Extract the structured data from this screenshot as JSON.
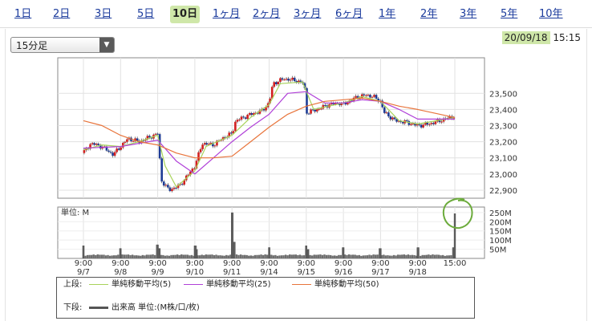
{
  "tabs": [
    {
      "label": "1日",
      "active": false
    },
    {
      "label": "2日",
      "active": false
    },
    {
      "label": "3日",
      "active": false
    },
    {
      "label": "5日",
      "active": false
    },
    {
      "label": "10日",
      "active": true
    },
    {
      "label": "1ヶ月",
      "active": false
    },
    {
      "label": "2ヶ月",
      "active": false
    },
    {
      "label": "3ヶ月",
      "active": false
    },
    {
      "label": "6ヶ月",
      "active": false
    },
    {
      "label": "1年",
      "active": false
    },
    {
      "label": "2年",
      "active": false
    },
    {
      "label": "3年",
      "active": false
    },
    {
      "label": "5年",
      "active": false
    },
    {
      "label": "10年",
      "active": false
    }
  ],
  "interval_select": {
    "value": "15分足"
  },
  "timestamp": {
    "date": "20/09/18",
    "time": "15:15"
  },
  "legend": {
    "upper_label": "上段:",
    "lower_label": "下段:",
    "items": [
      {
        "name": "単純移動平均(5)",
        "color": "#a8d35a"
      },
      {
        "name": "単純移動平均(25)",
        "color": "#b040d8"
      },
      {
        "name": "単純移動平均(50)",
        "color": "#e8743b"
      }
    ],
    "volume_item": "出来高 単位:(M株/口/枚)"
  },
  "chart_data": [
    {
      "type": "candlestick",
      "x_labels": [
        {
          "time": "9:00",
          "date": "9/7"
        },
        {
          "time": "9:00",
          "date": "9/8"
        },
        {
          "time": "9:00",
          "date": "9/9"
        },
        {
          "time": "9:00",
          "date": "9/10"
        },
        {
          "time": "9:00",
          "date": "9/11"
        },
        {
          "time": "9:00",
          "date": "9/14"
        },
        {
          "time": "9:00",
          "date": "9/15"
        },
        {
          "time": "9:00",
          "date": "9/16"
        },
        {
          "time": "9:00",
          "date": "9/17"
        },
        {
          "time": "9:00",
          "date": "9/18"
        },
        {
          "time": "15:00",
          "date": ""
        }
      ],
      "ylim": [
        22850,
        23720
      ],
      "y_ticks": [
        22900,
        23000,
        23100,
        23200,
        23300,
        23400,
        23500
      ],
      "y_tick_labels": [
        "22,900",
        "23,000",
        "23,100",
        "23,200",
        "23,300",
        "23,400",
        "23,500"
      ],
      "grid": true,
      "close_path": [
        {
          "x": 0.0,
          "y": 23130
        },
        {
          "x": 0.2,
          "y": 23190
        },
        {
          "x": 0.5,
          "y": 23170
        },
        {
          "x": 0.8,
          "y": 23120
        },
        {
          "x": 1.0,
          "y": 23170
        },
        {
          "x": 1.2,
          "y": 23220
        },
        {
          "x": 1.5,
          "y": 23200
        },
        {
          "x": 1.8,
          "y": 23230
        },
        {
          "x": 2.0,
          "y": 23250
        },
        {
          "x": 2.1,
          "y": 22960
        },
        {
          "x": 2.3,
          "y": 22900
        },
        {
          "x": 2.6,
          "y": 22930
        },
        {
          "x": 2.8,
          "y": 22990
        },
        {
          "x": 3.0,
          "y": 23050
        },
        {
          "x": 3.2,
          "y": 23190
        },
        {
          "x": 3.5,
          "y": 23180
        },
        {
          "x": 3.8,
          "y": 23230
        },
        {
          "x": 4.0,
          "y": 23250
        },
        {
          "x": 4.1,
          "y": 23330
        },
        {
          "x": 4.5,
          "y": 23370
        },
        {
          "x": 4.8,
          "y": 23390
        },
        {
          "x": 5.0,
          "y": 23440
        },
        {
          "x": 5.1,
          "y": 23560
        },
        {
          "x": 5.4,
          "y": 23590
        },
        {
          "x": 5.7,
          "y": 23580
        },
        {
          "x": 5.95,
          "y": 23560
        },
        {
          "x": 6.0,
          "y": 23380
        },
        {
          "x": 6.3,
          "y": 23400
        },
        {
          "x": 6.6,
          "y": 23430
        },
        {
          "x": 6.9,
          "y": 23440
        },
        {
          "x": 7.0,
          "y": 23430
        },
        {
          "x": 7.3,
          "y": 23470
        },
        {
          "x": 7.6,
          "y": 23490
        },
        {
          "x": 7.8,
          "y": 23480
        },
        {
          "x": 8.0,
          "y": 23450
        },
        {
          "x": 8.1,
          "y": 23380
        },
        {
          "x": 8.4,
          "y": 23330
        },
        {
          "x": 8.7,
          "y": 23320
        },
        {
          "x": 9.0,
          "y": 23300
        },
        {
          "x": 9.3,
          "y": 23310
        },
        {
          "x": 9.6,
          "y": 23330
        },
        {
          "x": 10.0,
          "y": 23360
        }
      ],
      "series": [
        {
          "name": "単純移動平均(5)",
          "color": "#a8d35a",
          "points": [
            {
              "x": 0.0,
              "y": 23150
            },
            {
              "x": 0.5,
              "y": 23180
            },
            {
              "x": 1.0,
              "y": 23170
            },
            {
              "x": 1.5,
              "y": 23200
            },
            {
              "x": 2.0,
              "y": 23240
            },
            {
              "x": 2.2,
              "y": 23050
            },
            {
              "x": 2.5,
              "y": 22920
            },
            {
              "x": 3.0,
              "y": 23020
            },
            {
              "x": 3.3,
              "y": 23170
            },
            {
              "x": 4.0,
              "y": 23240
            },
            {
              "x": 4.5,
              "y": 23350
            },
            {
              "x": 5.0,
              "y": 23430
            },
            {
              "x": 5.3,
              "y": 23560
            },
            {
              "x": 5.9,
              "y": 23570
            },
            {
              "x": 6.2,
              "y": 23400
            },
            {
              "x": 7.0,
              "y": 23440
            },
            {
              "x": 7.5,
              "y": 23480
            },
            {
              "x": 8.0,
              "y": 23450
            },
            {
              "x": 8.5,
              "y": 23330
            },
            {
              "x": 9.0,
              "y": 23310
            },
            {
              "x": 10.0,
              "y": 23350
            }
          ]
        },
        {
          "name": "単純移動平均(25)",
          "color": "#b040d8",
          "points": [
            {
              "x": 0.0,
              "y": 23160
            },
            {
              "x": 1.0,
              "y": 23170
            },
            {
              "x": 2.0,
              "y": 23210
            },
            {
              "x": 2.5,
              "y": 23080
            },
            {
              "x": 3.0,
              "y": 23000
            },
            {
              "x": 3.5,
              "y": 23100
            },
            {
              "x": 4.0,
              "y": 23200
            },
            {
              "x": 4.5,
              "y": 23290
            },
            {
              "x": 5.0,
              "y": 23370
            },
            {
              "x": 5.5,
              "y": 23500
            },
            {
              "x": 6.0,
              "y": 23510
            },
            {
              "x": 6.5,
              "y": 23440
            },
            {
              "x": 7.0,
              "y": 23440
            },
            {
              "x": 7.5,
              "y": 23460
            },
            {
              "x": 8.0,
              "y": 23450
            },
            {
              "x": 8.5,
              "y": 23400
            },
            {
              "x": 9.0,
              "y": 23340
            },
            {
              "x": 10.0,
              "y": 23340
            }
          ]
        },
        {
          "name": "単純移動平均(50)",
          "color": "#e8743b",
          "points": [
            {
              "x": 0.0,
              "y": 23330
            },
            {
              "x": 0.5,
              "y": 23300
            },
            {
              "x": 1.0,
              "y": 23240
            },
            {
              "x": 1.5,
              "y": 23200
            },
            {
              "x": 2.0,
              "y": 23180
            },
            {
              "x": 2.5,
              "y": 23130
            },
            {
              "x": 3.0,
              "y": 23100
            },
            {
              "x": 3.5,
              "y": 23100
            },
            {
              "x": 4.0,
              "y": 23110
            },
            {
              "x": 4.5,
              "y": 23200
            },
            {
              "x": 5.0,
              "y": 23290
            },
            {
              "x": 5.5,
              "y": 23370
            },
            {
              "x": 6.0,
              "y": 23420
            },
            {
              "x": 6.5,
              "y": 23450
            },
            {
              "x": 7.0,
              "y": 23460
            },
            {
              "x": 7.5,
              "y": 23470
            },
            {
              "x": 8.0,
              "y": 23450
            },
            {
              "x": 8.5,
              "y": 23420
            },
            {
              "x": 9.0,
              "y": 23400
            },
            {
              "x": 10.0,
              "y": 23350
            }
          ]
        }
      ]
    },
    {
      "type": "bar",
      "title": "単位: M",
      "ylim": [
        0,
        280
      ],
      "y_ticks": [
        50,
        100,
        150,
        200,
        250
      ],
      "y_tick_labels": [
        "50M",
        "100M",
        "150M",
        "200M",
        "250M"
      ],
      "grid": true,
      "baseline_volume": 12,
      "spikes": [
        {
          "x": 0.0,
          "value": 70
        },
        {
          "x": 1.0,
          "value": 55
        },
        {
          "x": 2.0,
          "value": 75
        },
        {
          "x": 2.05,
          "value": 55
        },
        {
          "x": 3.0,
          "value": 70
        },
        {
          "x": 3.05,
          "value": 50
        },
        {
          "x": 4.0,
          "value": 250
        },
        {
          "x": 4.05,
          "value": 90
        },
        {
          "x": 5.0,
          "value": 60
        },
        {
          "x": 6.0,
          "value": 70
        },
        {
          "x": 6.05,
          "value": 50
        },
        {
          "x": 7.0,
          "value": 60
        },
        {
          "x": 8.0,
          "value": 55
        },
        {
          "x": 9.0,
          "value": 60
        },
        {
          "x": 10.0,
          "value": 245
        },
        {
          "x": 9.97,
          "value": 60
        }
      ]
    }
  ]
}
